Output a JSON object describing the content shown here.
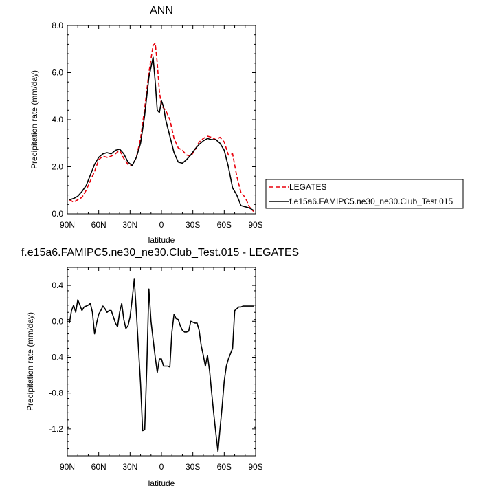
{
  "colors": {
    "model": "#000000",
    "obs": "#e8000b",
    "axis": "#000000"
  },
  "legend": {
    "placement": "right",
    "entries": [
      {
        "label": "LEGATES",
        "style": "dashed",
        "color": "#e8000b"
      },
      {
        "label": "f.e15a6.FAMIPC5.ne30_ne30.Club_Test.015",
        "style": "solid",
        "color": "#000000"
      }
    ]
  },
  "chart_data": [
    {
      "type": "line",
      "title": "ANN",
      "xlabel": "latitude",
      "ylabel": "Precipitation rate (mm/day)",
      "xlim": [
        90,
        -90
      ],
      "ylim": [
        0,
        8
      ],
      "xticks": [
        90,
        60,
        30,
        0,
        -30,
        -60,
        -90
      ],
      "xtick_labels": [
        "90N",
        "60N",
        "30N",
        "0",
        "30S",
        "60S",
        "90S"
      ],
      "yticks": [
        0,
        2,
        4,
        6,
        8
      ],
      "ytick_labels": [
        "0.0",
        "2.0",
        "4.0",
        "6.0",
        "8.0"
      ],
      "series": [
        {
          "name": "LEGATES",
          "x": [
            88,
            84,
            80,
            76,
            72,
            68,
            64,
            60,
            56,
            52,
            48,
            44,
            40,
            36,
            32,
            28,
            24,
            20,
            16,
            12,
            8,
            6,
            4,
            2,
            0,
            -2,
            -4,
            -8,
            -12,
            -16,
            -20,
            -24,
            -28,
            -32,
            -36,
            -40,
            -44,
            -48,
            -52,
            -56,
            -60,
            -64,
            -68,
            -72,
            -76,
            -80,
            -84,
            -88
          ],
          "y": [
            0.6,
            0.5,
            0.6,
            0.7,
            1.0,
            1.4,
            1.8,
            2.3,
            2.45,
            2.4,
            2.45,
            2.55,
            2.7,
            2.35,
            2.1,
            2.05,
            2.4,
            3.2,
            4.5,
            6.0,
            7.15,
            7.25,
            6.4,
            5.2,
            4.6,
            4.5,
            4.4,
            4.0,
            3.2,
            2.8,
            2.7,
            2.5,
            2.45,
            2.7,
            3.05,
            3.2,
            3.3,
            3.25,
            3.15,
            3.25,
            3.05,
            2.5,
            2.55,
            1.6,
            0.9,
            0.7,
            0.3,
            0.1
          ]
        },
        {
          "name": "f.e15a6.FAMIPC5.ne30_ne30.Club_Test.015",
          "x": [
            88,
            84,
            80,
            76,
            72,
            68,
            64,
            60,
            56,
            52,
            48,
            44,
            40,
            36,
            32,
            28,
            24,
            20,
            16,
            12,
            8,
            6,
            4,
            2,
            0,
            -2,
            -4,
            -8,
            -12,
            -16,
            -20,
            -24,
            -28,
            -32,
            -36,
            -40,
            -44,
            -48,
            -52,
            -56,
            -60,
            -64,
            -68,
            -72,
            -76,
            -80,
            -84,
            -88
          ],
          "y": [
            0.6,
            0.65,
            0.75,
            0.95,
            1.2,
            1.65,
            2.1,
            2.4,
            2.55,
            2.6,
            2.55,
            2.7,
            2.75,
            2.55,
            2.2,
            2.05,
            2.4,
            3.0,
            4.2,
            5.8,
            6.65,
            5.6,
            4.4,
            4.3,
            4.8,
            4.55,
            4.0,
            3.3,
            2.6,
            2.2,
            2.15,
            2.3,
            2.5,
            2.75,
            2.95,
            3.1,
            3.2,
            3.15,
            3.15,
            3.0,
            2.7,
            2.0,
            1.1,
            0.8,
            0.35,
            0.3,
            0.25,
            0.15
          ]
        }
      ]
    },
    {
      "type": "line",
      "title": "f.e15a6.FAMIPC5.ne30_ne30.Club_Test.015 - LEGATES",
      "xlabel": "latitude",
      "ylabel": "Precipitation rate (mm/day)",
      "xlim": [
        90,
        -90
      ],
      "ylim": [
        -1.5,
        0.6
      ],
      "xticks": [
        90,
        60,
        30,
        0,
        -30,
        -60,
        -90
      ],
      "xtick_labels": [
        "90N",
        "60N",
        "30N",
        "0",
        "30S",
        "60S",
        "90S"
      ],
      "yticks": [
        -1.2,
        -0.8,
        -0.4,
        0.0,
        0.4
      ],
      "ytick_labels": [
        "-1.2",
        "-0.8",
        "-0.4",
        "0.0",
        "0.4"
      ],
      "series": [
        {
          "name": "",
          "x": [
            88,
            86,
            84,
            82,
            80,
            78,
            76,
            74,
            72,
            70,
            68,
            66,
            64,
            62,
            60,
            58,
            56,
            54,
            52,
            50,
            48,
            46,
            44,
            42,
            40,
            38,
            36,
            34,
            32,
            30,
            28,
            26,
            24,
            22,
            20,
            18,
            16,
            14,
            12,
            10,
            8,
            6,
            4,
            2,
            0,
            -2,
            -4,
            -6,
            -8,
            -10,
            -12,
            -14,
            -16,
            -18,
            -20,
            -22,
            -24,
            -26,
            -28,
            -30,
            -32,
            -34,
            -36,
            -38,
            -40,
            -42,
            -44,
            -46,
            -48,
            -50,
            -52,
            -54,
            -56,
            -58,
            -60,
            -62,
            -64,
            -66,
            -68,
            -70,
            -72,
            -74,
            -76,
            -78,
            -80,
            -82,
            -84,
            -86,
            -88
          ],
          "y": [
            -0.02,
            0.12,
            0.18,
            0.1,
            0.24,
            0.18,
            0.12,
            0.16,
            0.17,
            0.18,
            0.2,
            0.1,
            -0.14,
            -0.02,
            0.08,
            0.12,
            0.17,
            0.14,
            0.1,
            0.12,
            0.12,
            0.05,
            -0.02,
            -0.06,
            0.1,
            0.2,
            0.02,
            -0.08,
            -0.05,
            0.05,
            0.25,
            0.47,
            0.1,
            -0.3,
            -0.7,
            -1.22,
            -1.21,
            -0.5,
            0.36,
            0.0,
            -0.2,
            -0.4,
            -0.57,
            -0.42,
            -0.42,
            -0.5,
            -0.5,
            -0.5,
            -0.51,
            -0.12,
            0.08,
            0.03,
            0.02,
            -0.05,
            -0.1,
            -0.12,
            -0.12,
            -0.11,
            0.0,
            -0.01,
            -0.02,
            -0.02,
            -0.1,
            -0.27,
            -0.38,
            -0.5,
            -0.38,
            -0.55,
            -0.8,
            -1.03,
            -1.25,
            -1.45,
            -1.2,
            -0.95,
            -0.67,
            -0.5,
            -0.42,
            -0.36,
            -0.3,
            0.12,
            0.14,
            0.16,
            0.16,
            0.17,
            0.17,
            0.17,
            0.17,
            0.17,
            0.17
          ]
        }
      ]
    }
  ]
}
